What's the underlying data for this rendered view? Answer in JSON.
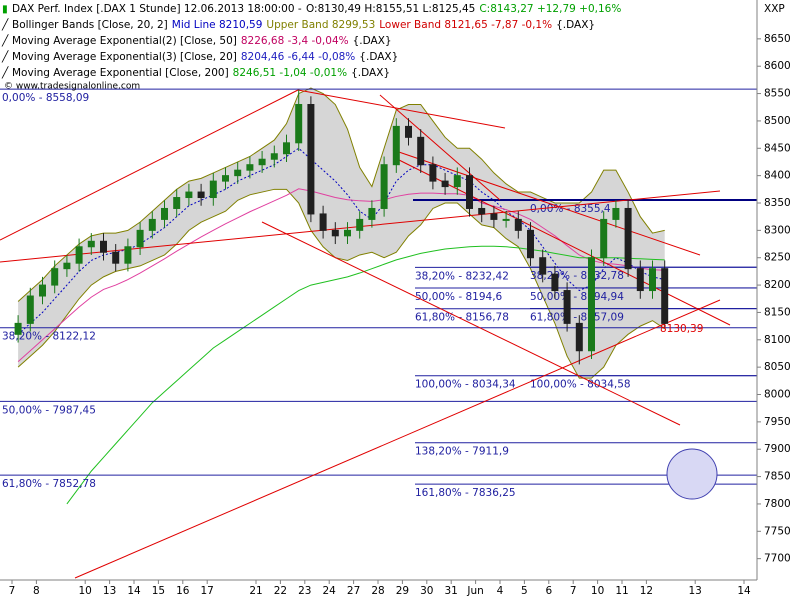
{
  "chart_data": {
    "type": "candlestick",
    "corner_label": "XXP",
    "copyright": "© www.tradesignalonline.com",
    "legend": [
      [
        {
          "text": "DAX Perf. Index [.DAX  1 Stunde] 12.06.2013 18:00:00 -",
          "color": "#000000"
        },
        {
          "text": "O:8130,49 H:8155,51 L:8125,45",
          "color": "#000000"
        },
        {
          "text": "C:8143,27 +12,79 +0,16%",
          "color": "#00a000"
        }
      ],
      [
        {
          "text": "Bollinger Bands [Close, 20, 2]",
          "color": "#000000"
        },
        {
          "text": "Mid Line 8210,59",
          "color": "#0000c0"
        },
        {
          "text": "Upper Band 8299,53",
          "color": "#808000"
        },
        {
          "text": "Lower Band 8121,65 -7,87 -0,1%",
          "color": "#d00000"
        },
        {
          "text": "{.DAX}",
          "color": "#000000"
        }
      ],
      [
        {
          "text": "Moving Average Exponential(2) [Close, 50]",
          "color": "#000000"
        },
        {
          "text": "8226,68 -3,4 -0,04%",
          "color": "#c00060"
        },
        {
          "text": "{.DAX}",
          "color": "#000000"
        }
      ],
      [
        {
          "text": "Moving Average Exponential(3) [Close, 20]",
          "color": "#000000"
        },
        {
          "text": "8204,46 -6,44 -0,08%",
          "color": "#2020c0"
        },
        {
          "text": "{.DAX}",
          "color": "#000000"
        }
      ],
      [
        {
          "text": "Moving Average Exponential [Close, 200]",
          "color": "#000000"
        },
        {
          "text": "8246,51 -1,04 -0,01%",
          "color": "#00a000"
        },
        {
          "text": "{.DAX}",
          "color": "#000000"
        }
      ]
    ],
    "categories": [
      "7",
      null,
      "8",
      null,
      null,
      null,
      "10",
      null,
      "13",
      null,
      "14",
      null,
      "15",
      null,
      "16",
      null,
      "17",
      null,
      null,
      null,
      "21",
      null,
      "22",
      null,
      "23",
      null,
      "24",
      null,
      "27",
      null,
      "28",
      null,
      "29",
      null,
      "30",
      null,
      "31",
      null,
      "Jun",
      null,
      "4",
      null,
      "5",
      null,
      "6",
      null,
      "7",
      null,
      "10",
      null,
      "11",
      null,
      "12",
      null,
      null,
      null,
      "13",
      null,
      null,
      null,
      "14",
      null
    ],
    "open": [
      8110,
      8130,
      8180,
      8200,
      8230,
      8240,
      8270,
      8280,
      8260,
      8240,
      8270,
      8300,
      8320,
      8340,
      8360,
      8370,
      8360,
      8390,
      8400,
      8410,
      8420,
      8430,
      8440,
      8460,
      8530,
      8330,
      8300,
      8290,
      8300,
      8320,
      8340,
      8420,
      8490,
      8470,
      8420,
      8390,
      8380,
      8400,
      8340,
      8330,
      8320,
      8320,
      8300,
      8250,
      8220,
      8190,
      8130,
      8080,
      8250,
      8320,
      8340,
      8230,
      8190,
      8230,
      null,
      null,
      null,
      null,
      null,
      null,
      null,
      null
    ],
    "high": [
      8145,
      8195,
      8215,
      8245,
      8255,
      8285,
      8295,
      8295,
      8275,
      8285,
      8315,
      8335,
      8355,
      8375,
      8385,
      8385,
      8405,
      8415,
      8425,
      8435,
      8445,
      8455,
      8475,
      8557,
      8545,
      8345,
      8315,
      8315,
      8335,
      8355,
      8435,
      8505,
      8505,
      8485,
      8435,
      8405,
      8415,
      8415,
      8355,
      8345,
      8335,
      8335,
      8315,
      8265,
      8235,
      8205,
      8145,
      8265,
      8335,
      8355,
      8355,
      8245,
      8245,
      8245,
      null,
      null,
      null,
      null,
      null,
      null,
      null,
      null
    ],
    "low": [
      8095,
      8115,
      8165,
      8185,
      8215,
      8225,
      8255,
      8245,
      8225,
      8225,
      8255,
      8285,
      8305,
      8325,
      8345,
      8345,
      8345,
      8375,
      8385,
      8395,
      8405,
      8415,
      8425,
      8445,
      8315,
      8285,
      8275,
      8275,
      8285,
      8305,
      8325,
      8405,
      8455,
      8405,
      8375,
      8365,
      8365,
      8325,
      8315,
      8305,
      8305,
      8285,
      8235,
      8205,
      8175,
      8115,
      8055,
      8065,
      8235,
      8305,
      8215,
      8175,
      8175,
      8122,
      null,
      null,
      null,
      null,
      null,
      null,
      null,
      null
    ],
    "close": [
      8130,
      8180,
      8200,
      8230,
      8240,
      8270,
      8280,
      8260,
      8240,
      8270,
      8300,
      8320,
      8340,
      8360,
      8370,
      8360,
      8390,
      8400,
      8410,
      8420,
      8430,
      8440,
      8460,
      8530,
      8330,
      8300,
      8290,
      8300,
      8320,
      8340,
      8420,
      8490,
      8470,
      8420,
      8390,
      8380,
      8400,
      8340,
      8330,
      8320,
      8320,
      8300,
      8250,
      8220,
      8190,
      8130,
      8080,
      8250,
      8320,
      8340,
      8230,
      8190,
      8230,
      8130,
      null,
      null,
      null,
      null,
      null,
      null,
      null,
      null
    ],
    "up_color": "#1a7a1a",
    "down_color": "#202020",
    "indicators": {
      "bb_upper": {
        "color": "#808000",
        "values": [
          8170,
          8190,
          8210,
          8235,
          8255,
          8275,
          8290,
          8295,
          8295,
          8300,
          8315,
          8335,
          8355,
          8375,
          8390,
          8395,
          8405,
          8415,
          8425,
          8435,
          8450,
          8465,
          8495,
          8550,
          8560,
          8550,
          8530,
          8485,
          8415,
          8380,
          8450,
          8520,
          8530,
          8530,
          8500,
          8470,
          8450,
          8450,
          8430,
          8405,
          8385,
          8370,
          8370,
          8360,
          8350,
          8350,
          8350,
          8370,
          8410,
          8410,
          8370,
          8325,
          8295,
          8300,
          null,
          null,
          null,
          null,
          null,
          null,
          null,
          null
        ]
      },
      "bb_lower": {
        "color": "#808000",
        "values": [
          8050,
          8070,
          8090,
          8115,
          8145,
          8175,
          8200,
          8215,
          8225,
          8230,
          8235,
          8245,
          8255,
          8275,
          8300,
          8315,
          8325,
          8335,
          8355,
          8365,
          8370,
          8375,
          8375,
          8350,
          8300,
          8270,
          8250,
          8245,
          8255,
          8260,
          8250,
          8260,
          8290,
          8310,
          8340,
          8350,
          8350,
          8330,
          8310,
          8305,
          8285,
          8270,
          8230,
          8180,
          8130,
          8070,
          8030,
          8030,
          8050,
          8090,
          8110,
          8125,
          8135,
          8120,
          null,
          null,
          null,
          null,
          null,
          null,
          null,
          null
        ]
      },
      "bb_mid": {
        "color": "#0000c0",
        "values": [
          8110,
          8130,
          8150,
          8175,
          8200,
          8225,
          8245,
          8255,
          8260,
          8265,
          8275,
          8290,
          8305,
          8325,
          8345,
          8355,
          8365,
          8375,
          8390,
          8400,
          8410,
          8420,
          8435,
          8450,
          8430,
          8410,
          8390,
          8365,
          8335,
          8320,
          8350,
          8390,
          8410,
          8420,
          8420,
          8410,
          8400,
          8390,
          8370,
          8355,
          8335,
          8320,
          8300,
          8270,
          8240,
          8210,
          8190,
          8200,
          8230,
          8250,
          8240,
          8225,
          8215,
          8210,
          null,
          null,
          null,
          null,
          null,
          null,
          null,
          null
        ]
      },
      "ema50": {
        "color": "#e040a0",
        "values": [
          8060,
          8080,
          8100,
          8120,
          8140,
          8160,
          8178,
          8192,
          8200,
          8210,
          8222,
          8235,
          8248,
          8262,
          8275,
          8288,
          8300,
          8312,
          8323,
          8334,
          8344,
          8354,
          8364,
          8376,
          8372,
          8366,
          8360,
          8356,
          8354,
          8353,
          8356,
          8362,
          8366,
          8368,
          8368,
          8367,
          8367,
          8364,
          8350,
          8344,
          8338,
          8330,
          8320,
          8305,
          8290,
          8272,
          8255,
          8245,
          8240,
          8238,
          8235,
          8231,
          8228,
          8227,
          null,
          null,
          null,
          null,
          null,
          null,
          null,
          null
        ]
      },
      "ema200": {
        "color": "#20c020",
        "values": [
          null,
          null,
          null,
          null,
          7800,
          7830,
          7860,
          7885,
          7910,
          7935,
          7960,
          7985,
          8005,
          8025,
          8045,
          8065,
          8085,
          8100,
          8115,
          8130,
          8145,
          8160,
          8175,
          8190,
          8200,
          8205,
          8210,
          8215,
          8222,
          8230,
          8238,
          8246,
          8252,
          8258,
          8262,
          8266,
          8268,
          8270,
          8271,
          8271,
          8270,
          8268,
          8265,
          8262,
          8258,
          8254,
          8250,
          8250,
          8250,
          8250,
          8249,
          8248,
          8247,
          8246,
          null,
          null,
          null,
          null,
          null,
          null,
          null,
          null
        ]
      }
    },
    "fib_levels": [
      {
        "value": 8558.09,
        "label": "0,00% - 8558,09"
      },
      {
        "value": 8355.4,
        "label": "0,00% - 8355,4"
      },
      {
        "value": 8232.42,
        "label": "38,20% - 8232,42"
      },
      {
        "value": 8232.78,
        "label": "38,20% - 8232,78"
      },
      {
        "value": 8194.6,
        "label": "50,00% - 8194,6"
      },
      {
        "value": 8194.94,
        "label": "50,00% - 8194,94"
      },
      {
        "value": 8156.78,
        "label": "61,80% - 8156,78"
      },
      {
        "value": 8157.09,
        "label": "61,80% - 8157,09"
      },
      {
        "value": 8122.12,
        "label": "38,20% - 8122,12"
      },
      {
        "value": 8034.34,
        "label": "100,00% - 8034,34"
      },
      {
        "value": 8034.58,
        "label": "100,00% - 8034,58"
      },
      {
        "value": 7987.45,
        "label": "50,00% - 7987,45"
      },
      {
        "value": 7911.9,
        "label": "138,20% - 7911,9"
      },
      {
        "value": 7852.78,
        "label": "61,80% - 7852,78"
      },
      {
        "value": 7836.25,
        "label": "161,80% - 7836,25"
      }
    ],
    "last_price": {
      "value": 8130.39,
      "label": "8130,39"
    },
    "ylim": [
      7661,
      8721
    ],
    "yticks": [
      7700,
      7750,
      7800,
      7850,
      7900,
      7950,
      8000,
      8050,
      8100,
      8150,
      8200,
      8250,
      8300,
      8350,
      8400,
      8450,
      8500,
      8550,
      8600,
      8650
    ]
  }
}
